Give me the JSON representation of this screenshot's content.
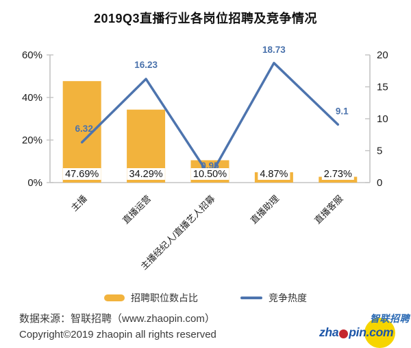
{
  "title": "2019Q3直播行业各岗位招聘及竞争情况",
  "chart_data": {
    "type": "bar+line combo",
    "categories": [
      "主播",
      "直播运营",
      "主播经纪人/直播艺人招募",
      "直播助理",
      "直播客服"
    ],
    "series": [
      {
        "name": "招聘职位数占比",
        "type": "bar",
        "axis": "left",
        "unit": "%",
        "values": [
          47.69,
          34.29,
          10.5,
          4.87,
          2.73
        ],
        "labels": [
          "47.69%",
          "34.29%",
          "10.50%",
          "4.87%",
          "2.73%"
        ]
      },
      {
        "name": "竞争热度",
        "type": "line",
        "axis": "right",
        "values": [
          6.32,
          16.23,
          0.95,
          18.73,
          9.1
        ],
        "labels": [
          "6.32",
          "16.23",
          "0.95",
          "18.73",
          "9.1"
        ]
      }
    ],
    "left_axis": {
      "min": 0,
      "max": 60,
      "tick_values": [
        0,
        20,
        40,
        60
      ],
      "ticks": [
        "0%",
        "20%",
        "40%",
        "60%"
      ]
    },
    "right_axis": {
      "min": 0,
      "max": 20,
      "tick_values": [
        0,
        5,
        10,
        15,
        20
      ],
      "ticks": [
        "0",
        "5",
        "10",
        "15",
        "20"
      ]
    },
    "grid": false,
    "legend_position": "bottom"
  },
  "legend": {
    "bar_label": "招聘职位数占比",
    "line_label": "竞争热度"
  },
  "footer": {
    "source": "数据来源：智联招聘（www.zhaopin.com）",
    "copyright": "Copyright©2019 zhaopin all rights reserved"
  },
  "logo": {
    "cn": "智联招聘",
    "en_prefix": "zha",
    "en_suffix": "pin.com"
  },
  "colors": {
    "bar": "#F2B33D",
    "line": "#4D74AE",
    "line_label": "#4A72AC",
    "bar_label_text": "#111111",
    "axis_line": "#C3C3C3",
    "axis_text": "#1a1a1a",
    "category_text": "#222222",
    "logo_blue": "#1C55A7",
    "logo_cn_blue": "#2A69B3",
    "logo_yellow": "#F6D500",
    "logo_red": "#C5262D"
  }
}
